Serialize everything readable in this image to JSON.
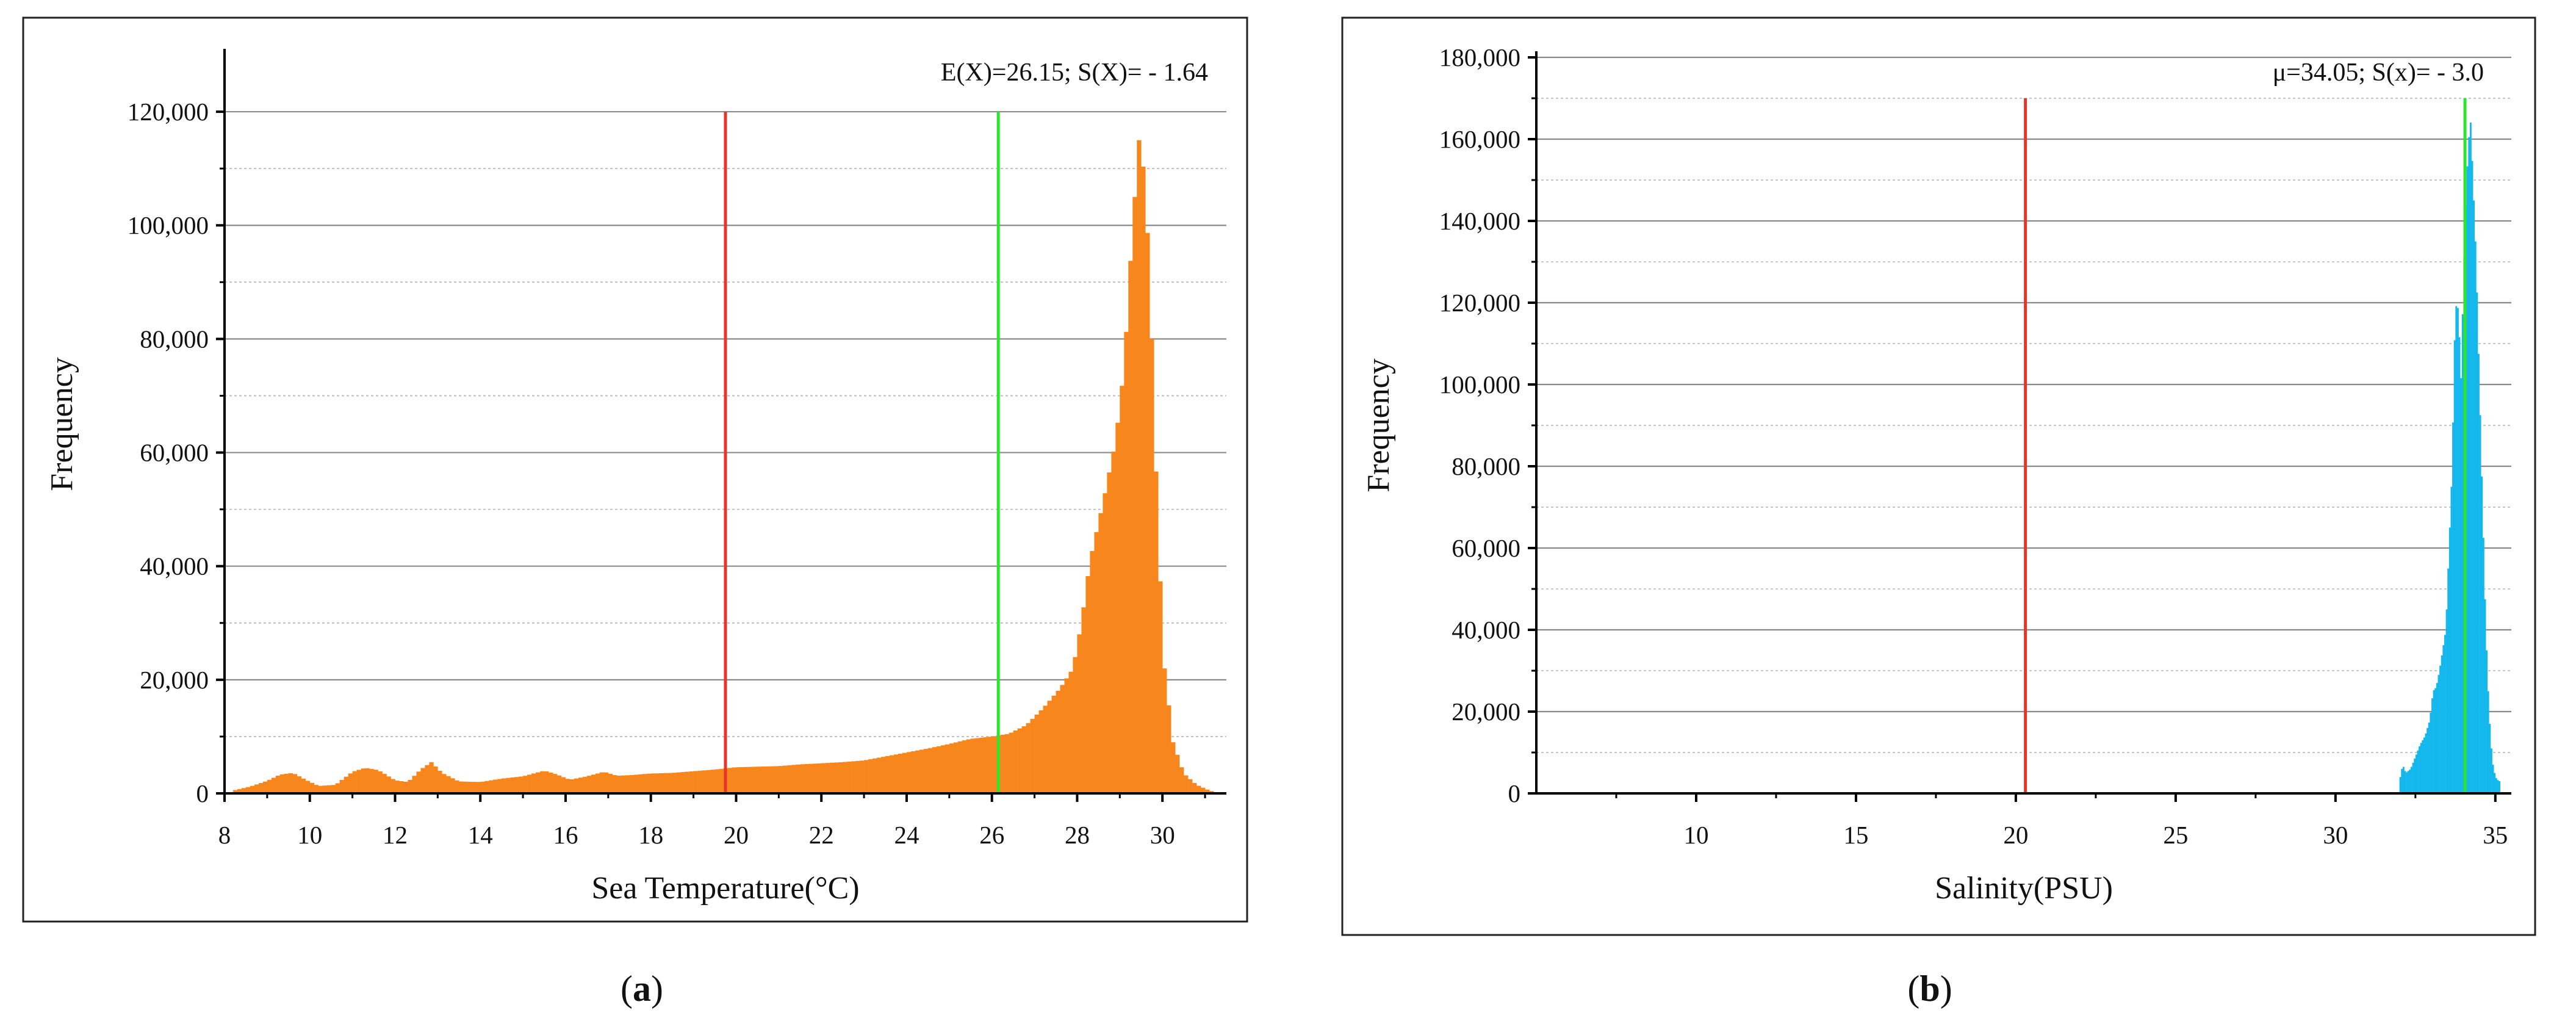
{
  "chart_data": [
    {
      "type": "bar",
      "panel_label": "a",
      "annotation": "E(X)=26.15; S(X)= - 1.64",
      "xlabel": "Sea Temperature(°C)",
      "ylabel": "Frequency",
      "xlim": [
        8,
        31.5
      ],
      "ylim": [
        0,
        130000
      ],
      "xticks": [
        8,
        10,
        12,
        14,
        16,
        18,
        20,
        22,
        24,
        26,
        28,
        30
      ],
      "yticks": [
        0,
        20000,
        40000,
        60000,
        80000,
        100000,
        120000
      ],
      "ytick_labels": [
        "0",
        "20,000",
        "40,000",
        "60,000",
        "80,000",
        "100,000",
        "120,000"
      ],
      "grid": "on",
      "bar_color": "#F7861C",
      "reference_lines": [
        {
          "x": 19.75,
          "color": "#E8352B",
          "top": 120000
        },
        {
          "x": 26.15,
          "color": "#2EE52E",
          "top": 120000
        }
      ],
      "bin_width": 0.1,
      "bins_start": 8.2,
      "profile": [
        [
          8.2,
          500
        ],
        [
          8.6,
          1200
        ],
        [
          9.0,
          2200
        ],
        [
          9.3,
          3300
        ],
        [
          9.6,
          3600
        ],
        [
          9.9,
          2400
        ],
        [
          10.2,
          1300
        ],
        [
          10.6,
          1500
        ],
        [
          11.0,
          3800
        ],
        [
          11.3,
          4500
        ],
        [
          11.6,
          4100
        ],
        [
          12.0,
          2300
        ],
        [
          12.3,
          2000
        ],
        [
          12.6,
          4200
        ],
        [
          12.85,
          5500
        ],
        [
          13.1,
          3600
        ],
        [
          13.5,
          2100
        ],
        [
          14.0,
          2000
        ],
        [
          14.5,
          2600
        ],
        [
          15.0,
          3000
        ],
        [
          15.5,
          4000
        ],
        [
          15.8,
          3300
        ],
        [
          16.1,
          2400
        ],
        [
          16.5,
          3000
        ],
        [
          16.9,
          3800
        ],
        [
          17.2,
          3100
        ],
        [
          17.5,
          3200
        ],
        [
          18.0,
          3500
        ],
        [
          18.5,
          3600
        ],
        [
          19.0,
          3900
        ],
        [
          19.5,
          4200
        ],
        [
          20.0,
          4600
        ],
        [
          20.5,
          4700
        ],
        [
          21.0,
          4800
        ],
        [
          21.5,
          5100
        ],
        [
          22.0,
          5300
        ],
        [
          22.5,
          5500
        ],
        [
          23.0,
          5800
        ],
        [
          23.5,
          6500
        ],
        [
          24.0,
          7200
        ],
        [
          24.5,
          7900
        ],
        [
          25.0,
          8700
        ],
        [
          25.5,
          9600
        ],
        [
          26.0,
          10000
        ],
        [
          26.4,
          10500
        ],
        [
          26.8,
          12000
        ],
        [
          27.2,
          15000
        ],
        [
          27.6,
          18500
        ],
        [
          27.9,
          22000
        ],
        [
          28.1,
          30000
        ],
        [
          28.3,
          41000
        ],
        [
          28.6,
          51000
        ],
        [
          28.9,
          62000
        ],
        [
          29.1,
          75000
        ],
        [
          29.3,
          100000
        ],
        [
          29.45,
          115000
        ],
        [
          29.6,
          108000
        ],
        [
          29.75,
          80000
        ],
        [
          29.9,
          45000
        ],
        [
          30.05,
          22000
        ],
        [
          30.25,
          9000
        ],
        [
          30.5,
          3500
        ],
        [
          30.8,
          1500
        ],
        [
          31.1,
          500
        ],
        [
          31.3,
          100
        ]
      ]
    },
    {
      "type": "bar",
      "panel_label": "b",
      "annotation": "μ=34.05; S(x)= - 3.0",
      "xlabel": "Salinity(PSU)",
      "ylabel": "Frequency",
      "xlim": [
        5,
        35.5
      ],
      "ylim": [
        0,
        180000
      ],
      "xticks": [
        10,
        15,
        20,
        25,
        30,
        35
      ],
      "yticks": [
        0,
        20000,
        40000,
        60000,
        80000,
        100000,
        120000,
        140000,
        160000,
        180000
      ],
      "ytick_labels": [
        "0",
        "20,000",
        "40,000",
        "60,000",
        "80,000",
        "100,000",
        "120,000",
        "140,000",
        "160,000",
        "180,000"
      ],
      "grid": "on",
      "bar_color": "#15B8EC",
      "reference_lines": [
        {
          "x": 20.3,
          "color": "#E8352B",
          "top": 170000
        },
        {
          "x": 34.05,
          "color": "#2EE52E",
          "top": 170000
        }
      ],
      "bin_width": 0.05,
      "bins_start": 32.0,
      "profile": [
        [
          32.0,
          3000
        ],
        [
          32.1,
          7000
        ],
        [
          32.2,
          5000
        ],
        [
          32.35,
          6000
        ],
        [
          32.5,
          9000
        ],
        [
          32.65,
          12000
        ],
        [
          32.8,
          14000
        ],
        [
          32.95,
          18000
        ],
        [
          33.05,
          25000
        ],
        [
          33.15,
          26000
        ],
        [
          33.25,
          30000
        ],
        [
          33.35,
          35000
        ],
        [
          33.45,
          40000
        ],
        [
          33.55,
          60000
        ],
        [
          33.65,
          80000
        ],
        [
          33.72,
          110000
        ],
        [
          33.78,
          120000
        ],
        [
          33.85,
          118000
        ],
        [
          33.92,
          100000
        ],
        [
          34.0,
          125000
        ],
        [
          34.08,
          145000
        ],
        [
          34.15,
          158000
        ],
        [
          34.22,
          165000
        ],
        [
          34.3,
          150000
        ],
        [
          34.4,
          130000
        ],
        [
          34.5,
          100000
        ],
        [
          34.6,
          70000
        ],
        [
          34.7,
          40000
        ],
        [
          34.8,
          20000
        ],
        [
          34.9,
          8000
        ],
        [
          35.0,
          4000
        ],
        [
          35.1,
          3000
        ]
      ]
    }
  ],
  "captions": {
    "a": "a",
    "b": "b"
  }
}
